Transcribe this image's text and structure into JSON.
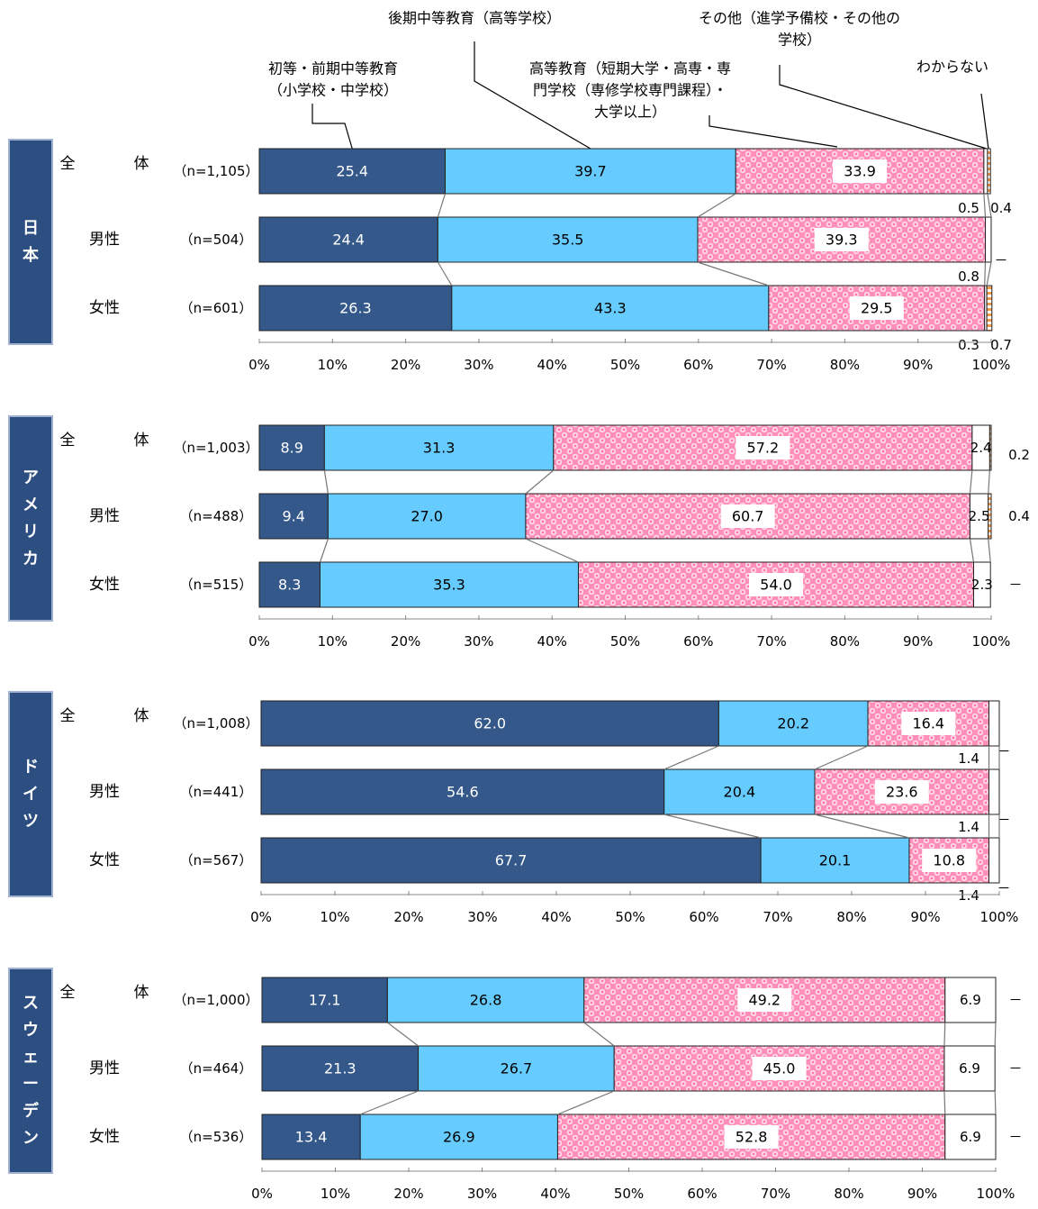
{
  "chart_data": {
    "type": "bar",
    "orientation": "horizontal",
    "stacked": "100%",
    "legend_callouts": [
      {
        "lines": [
          "初等・前期中等教育",
          "（小学校・中学校）"
        ]
      },
      {
        "lines": [
          "後期中等教育（高等学校）"
        ]
      },
      {
        "lines": [
          "高等教育（短期大学・高専・専",
          "門学校（専修学校専門課程）・",
          "大学以上）"
        ]
      },
      {
        "lines": [
          "その他（進学予備校・その他の",
          "学校）"
        ]
      },
      {
        "lines": [
          "わからない"
        ]
      }
    ],
    "series_colors": [
      "#34588a",
      "#66ccff",
      "#ff88b3",
      "#ffffff",
      "#f29a4a"
    ],
    "x_ticks": [
      "0%",
      "10%",
      "20%",
      "30%",
      "40%",
      "50%",
      "60%",
      "70%",
      "80%",
      "90%",
      "100%"
    ],
    "xlim": [
      0,
      100
    ],
    "panels": [
      {
        "country": "日本",
        "rows": [
          {
            "label": "全　　　体",
            "n": "（n=1,105）",
            "values": [
              25.4,
              39.7,
              33.9,
              0.5,
              0.4
            ],
            "labels": [
              "25.4",
              "39.7",
              "33.9",
              "0.5",
              "0.4"
            ]
          },
          {
            "label": "男性",
            "n": "（n=504）",
            "values": [
              24.4,
              35.5,
              39.3,
              0.8,
              0
            ],
            "labels": [
              "24.4",
              "35.5",
              "39.3",
              "0.8",
              "－"
            ]
          },
          {
            "label": "女性",
            "n": "（n=601）",
            "values": [
              26.3,
              43.3,
              29.5,
              0.3,
              0.7
            ],
            "labels": [
              "26.3",
              "43.3",
              "29.5",
              "0.3",
              "0.7"
            ]
          }
        ]
      },
      {
        "country": "アメリカ",
        "rows": [
          {
            "label": "全　　　体",
            "n": "（n=1,003）",
            "values": [
              8.9,
              31.3,
              57.2,
              2.4,
              0.2
            ],
            "labels": [
              "8.9",
              "31.3",
              "57.2",
              "2.4",
              "0.2"
            ]
          },
          {
            "label": "男性",
            "n": "（n=488）",
            "values": [
              9.4,
              27.0,
              60.7,
              2.5,
              0.4
            ],
            "labels": [
              "9.4",
              "27.0",
              "60.7",
              "2.5",
              "0.4"
            ]
          },
          {
            "label": "女性",
            "n": "（n=515）",
            "values": [
              8.3,
              35.3,
              54.0,
              2.3,
              0
            ],
            "labels": [
              "8.3",
              "35.3",
              "54.0",
              "2.3",
              "－"
            ]
          }
        ]
      },
      {
        "country": "ドイツ",
        "rows": [
          {
            "label": "全　　　体",
            "n": "（n=1,008）",
            "values": [
              62.0,
              20.2,
              16.4,
              1.4,
              0
            ],
            "labels": [
              "62.0",
              "20.2",
              "16.4",
              "1.4",
              "－"
            ]
          },
          {
            "label": "男性",
            "n": "（n=441）",
            "values": [
              54.6,
              20.4,
              23.6,
              1.4,
              0
            ],
            "labels": [
              "54.6",
              "20.4",
              "23.6",
              "1.4",
              "－"
            ]
          },
          {
            "label": "女性",
            "n": "（n=567）",
            "values": [
              67.7,
              20.1,
              10.8,
              1.4,
              0
            ],
            "labels": [
              "67.7",
              "20.1",
              "10.8",
              "1.4",
              "－"
            ]
          }
        ]
      },
      {
        "country": "スウェーデン",
        "rows": [
          {
            "label": "全　　　体",
            "n": "（n=1,000）",
            "values": [
              17.1,
              26.8,
              49.2,
              6.9,
              0
            ],
            "labels": [
              "17.1",
              "26.8",
              "49.2",
              "6.9",
              "－"
            ]
          },
          {
            "label": "男性",
            "n": "（n=464）",
            "values": [
              21.3,
              26.7,
              45.0,
              6.9,
              0
            ],
            "labels": [
              "21.3",
              "26.7",
              "45.0",
              "6.9",
              "－"
            ]
          },
          {
            "label": "女性",
            "n": "（n=536）",
            "values": [
              13.4,
              26.9,
              52.8,
              6.9,
              0
            ],
            "labels": [
              "13.4",
              "26.9",
              "52.8",
              "6.9",
              "－"
            ]
          }
        ]
      }
    ]
  }
}
